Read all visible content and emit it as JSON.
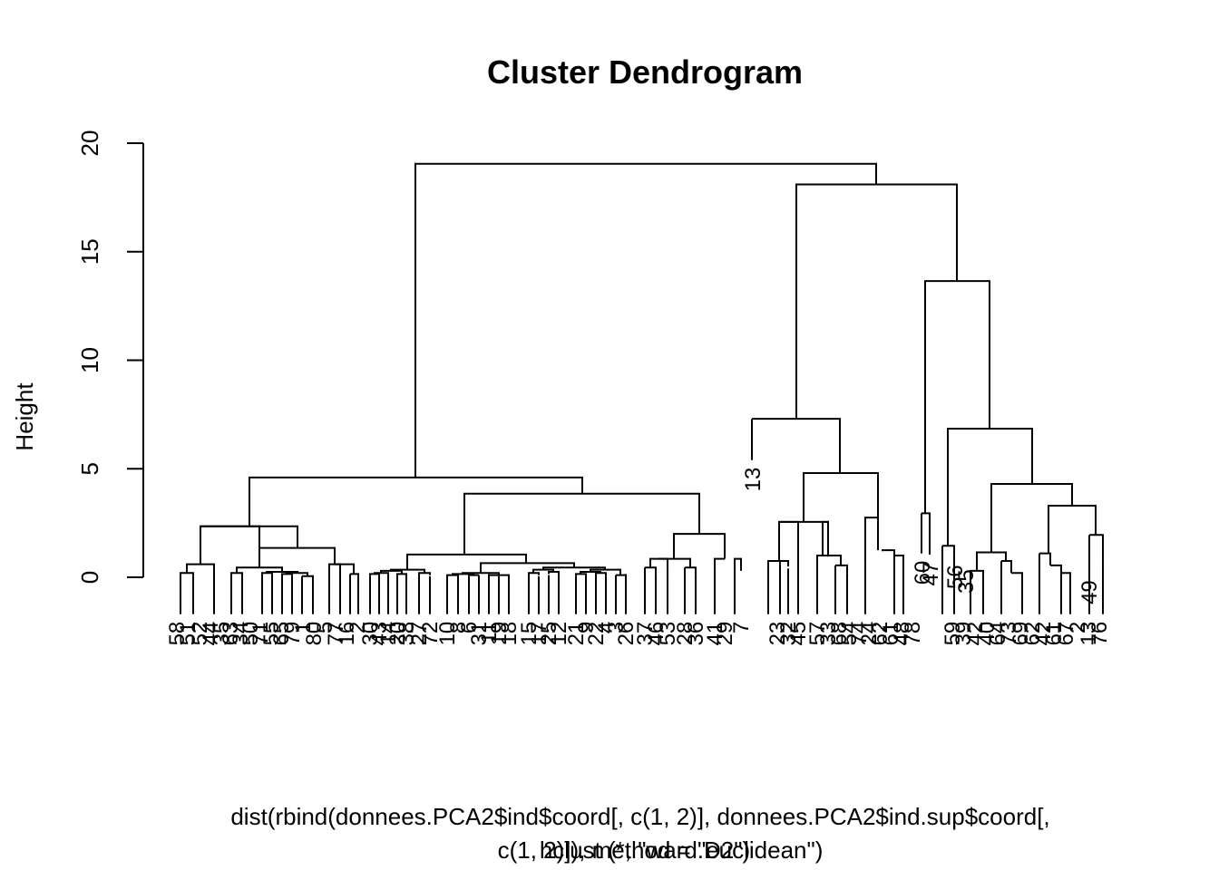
{
  "chart_data": {
    "type": "dendrogram",
    "title": "Cluster Dendrogram",
    "ylabel": "Height",
    "xlabel_lines": [
      "dist(rbind(donnees.PCA2$ind$coord[, c(1, 2)], donnees.PCA2$ind.sup$coord[,",
      "c(1, 2)]), method = \"euclidean\")"
    ],
    "sub": "hclust (*, \"ward.D2\")",
    "ylim": [
      0,
      20
    ],
    "yticks": [
      0,
      5,
      10,
      15,
      20
    ],
    "leaf_order": [
      "58",
      "51",
      "52",
      "44",
      "35",
      "63",
      "34",
      "50",
      "71",
      "55",
      "65",
      "79",
      "1",
      "80",
      "5",
      "77",
      "16",
      "2",
      "30",
      "43",
      "14",
      "20",
      "38",
      "27",
      "72",
      "10",
      "8",
      "6",
      "31",
      "11",
      "19",
      "18",
      "15",
      "17",
      "25",
      "12",
      "21",
      "9",
      "22",
      "4",
      "3",
      "26",
      "37",
      "46",
      "53",
      "28",
      "36",
      "41",
      "29",
      "7",
      "23",
      "32",
      "45",
      "57",
      "33",
      "68",
      "54",
      "74",
      "24",
      "62",
      "61",
      "48",
      "78",
      "59",
      "39",
      "42",
      "40",
      "64",
      "73",
      "69",
      "60",
      "66",
      "47",
      "56",
      "35",
      "75",
      "76"
    ],
    "labeled_leaves": [
      "13",
      "60",
      "47",
      "49",
      "76",
      "56",
      "35",
      "40",
      "64",
      "62",
      "73",
      "42",
      "61",
      "69",
      "78",
      "23",
      "33",
      "57",
      "68",
      "74",
      "24",
      "62"
    ],
    "top_merges": [
      {
        "height": 19.05,
        "left": "cluster-A",
        "right": "cluster-B"
      },
      {
        "height": 18.1,
        "left": "cluster-B1",
        "right": "cluster-B2"
      },
      {
        "height": 13.65,
        "left": "cluster-B2a",
        "right": "cluster-B2b"
      },
      {
        "height": 7.3,
        "left": "13",
        "right": "cluster-B1b"
      },
      {
        "height": 6.85,
        "left": "cluster-B2b1",
        "right": "cluster-B2b2"
      },
      {
        "height": 4.6,
        "left": "cluster-A1",
        "right": "cluster-A2"
      },
      {
        "height": 4.8,
        "left": "cluster-B1b1",
        "right": "cluster-B1b2"
      },
      {
        "height": 4.3,
        "left": "cluster-B2b2a",
        "right": "cluster-B2b2b"
      },
      {
        "height": 3.85,
        "left": "cluster-A2a",
        "right": "cluster-A2b"
      },
      {
        "height": 3.3,
        "left": "cluster-B2b2b1",
        "right": "cluster-B2b2b2"
      },
      {
        "height": 2.35,
        "left": "cluster-A1a",
        "right": "cluster-A1b"
      },
      {
        "height": 2.0,
        "left": "cluster-A2b1",
        "right": "cluster-A2b2"
      }
    ]
  }
}
